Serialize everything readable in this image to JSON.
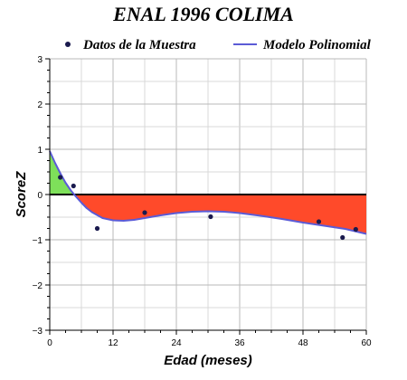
{
  "chart_data": {
    "type": "scatter",
    "title": "ENAL 1996 COLIMA",
    "xlabel": "Edad (meses)",
    "ylabel": "ScoreZ",
    "xlim": [
      0,
      60
    ],
    "ylim": [
      -3,
      3
    ],
    "x_ticks": [
      0,
      12,
      24,
      36,
      48,
      60
    ],
    "y_ticks": [
      -3,
      -2,
      -1,
      0,
      1,
      2,
      3
    ],
    "x_tick_labels": [
      "0",
      "12",
      "24",
      "36",
      "48",
      "60"
    ],
    "y_tick_labels": [
      "−3",
      "−2",
      "−1",
      "0",
      "1",
      "2",
      "3"
    ],
    "grid": true,
    "legend_position": "top",
    "series": [
      {
        "name": "Datos de la Muestra",
        "kind": "points",
        "color": "#1a1a4e",
        "points": [
          {
            "x": 2,
            "y": 0.38
          },
          {
            "x": 4.5,
            "y": 0.19
          },
          {
            "x": 9,
            "y": -0.75
          },
          {
            "x": 18,
            "y": -0.4
          },
          {
            "x": 30.5,
            "y": -0.49
          },
          {
            "x": 51,
            "y": -0.6
          },
          {
            "x": 55.5,
            "y": -0.95
          },
          {
            "x": 58,
            "y": -0.77
          }
        ]
      },
      {
        "name": "Modelo Polinomial",
        "kind": "line",
        "color": "#5b5bd6",
        "points": [
          {
            "x": 0,
            "y": 0.96
          },
          {
            "x": 1,
            "y": 0.7
          },
          {
            "x": 2,
            "y": 0.47
          },
          {
            "x": 3,
            "y": 0.26
          },
          {
            "x": 4,
            "y": 0.09
          },
          {
            "x": 5,
            "y": -0.05
          },
          {
            "x": 6,
            "y": -0.18
          },
          {
            "x": 7,
            "y": -0.3
          },
          {
            "x": 8,
            "y": -0.39
          },
          {
            "x": 10,
            "y": -0.52
          },
          {
            "x": 12,
            "y": -0.57
          },
          {
            "x": 14,
            "y": -0.58
          },
          {
            "x": 16,
            "y": -0.56
          },
          {
            "x": 18,
            "y": -0.52
          },
          {
            "x": 21,
            "y": -0.46
          },
          {
            "x": 24,
            "y": -0.41
          },
          {
            "x": 27,
            "y": -0.38
          },
          {
            "x": 30,
            "y": -0.37
          },
          {
            "x": 33,
            "y": -0.38
          },
          {
            "x": 36,
            "y": -0.41
          },
          {
            "x": 40,
            "y": -0.47
          },
          {
            "x": 44,
            "y": -0.54
          },
          {
            "x": 48,
            "y": -0.62
          },
          {
            "x": 52,
            "y": -0.69
          },
          {
            "x": 56,
            "y": -0.76
          },
          {
            "x": 60,
            "y": -0.87
          }
        ]
      }
    ],
    "fill_above_zero_color": "#7ee05a",
    "fill_below_zero_color": "#ff4a2a"
  }
}
